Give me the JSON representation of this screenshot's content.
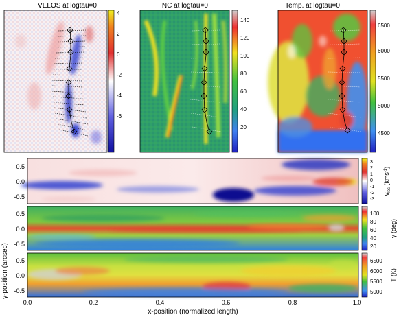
{
  "figure": {
    "top_panels": [
      {
        "title": "VELOS at logtau=0",
        "ticks": [
          "4",
          "2",
          "0",
          "-2",
          "-4",
          "-6"
        ]
      },
      {
        "title": "INC at logtau=0",
        "ticks": [
          "140",
          "120",
          "100",
          "80",
          "60",
          "40",
          "20"
        ]
      },
      {
        "title": "Temp. at logtau=0",
        "ticks": [
          "6500",
          "6000",
          "5500",
          "5000",
          "4500"
        ]
      }
    ],
    "strips": [
      {
        "name": "vlos",
        "colorbar_label": "v",
        "colorbar_sub": "los",
        "colorbar_unit": " (kms",
        "colorbar_sup": "-1",
        "colorbar_close": ")",
        "ticks": [
          "3",
          "2",
          "1",
          "0",
          "-1",
          "-2",
          "-3"
        ]
      },
      {
        "name": "inclination",
        "colorbar_label": "γ (deg)",
        "ticks": [
          "100",
          "80",
          "60",
          "40",
          "20"
        ]
      },
      {
        "name": "temperature",
        "colorbar_label": "T (K)",
        "ticks": [
          "6500",
          "6000",
          "5500",
          "5000"
        ]
      }
    ],
    "y_ticks": [
      "0.5",
      "0.0",
      "-0.5"
    ],
    "x_ticks": [
      "0.0",
      "0.2",
      "0.4",
      "0.6",
      "0.8",
      "1.0"
    ],
    "ylabel": "y-position (arcsec)",
    "xlabel": "x-position (normalized length)",
    "colors": {
      "red": "#e03030",
      "white": "#ffffff",
      "blue": "#1020d0",
      "green_bg": "#2fa06a",
      "yellow": "#f0f020",
      "orange": "#f07020",
      "grey": "#c8c8c8"
    }
  }
}
